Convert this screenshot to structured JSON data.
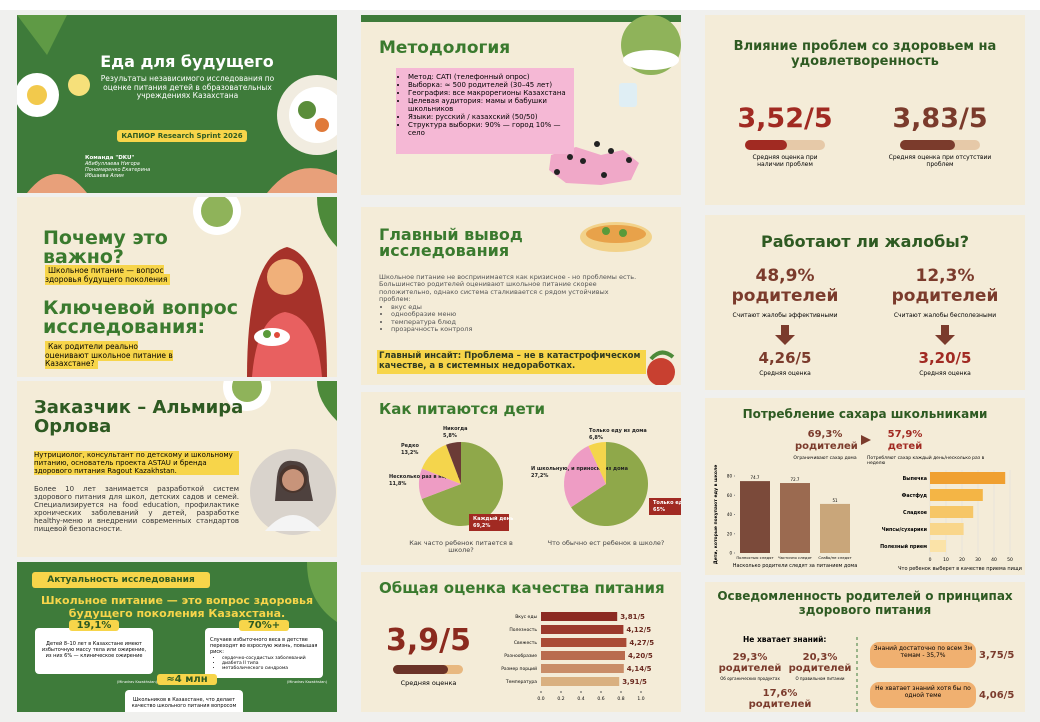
{
  "title_slide": {
    "title": "Еда для будущего",
    "subtitle": "Результаты независимого исследования по оценке питания детей в образовательных учреждениях Казахстана",
    "badge": "КАПИОР Research Sprint 2026",
    "team": "Команда \"DKU\"",
    "members": [
      "Абибуллаева Нигора",
      "Пономаренко Екатерина",
      "Ибшаева Алим"
    ]
  },
  "importance": {
    "title": "Почему это важно?",
    "text": "Школьное питание — вопрос здоровья будущего поколения",
    "question_title": "Ключевой вопрос исследования:",
    "question": "Как родители реально оценивают школьное питание в Казахстане?"
  },
  "client": {
    "title": "Заказчик – Альмира Орлова",
    "bio": "Нутрициолог, консультант по детскому и школьному питанию, основатель проекта ASTAU и бренда здорового питания Ragout Kazakhstan.",
    "experience": "Более 10 лет занимается разработкой систем здорового питания для школ, детских садов и семей. Специализируется на food education, профилактике хронических заболеваний у детей, разработке healthy-меню и внедрении современных стандартов пищевой безопасности."
  },
  "relevance": {
    "badge": "Актуальность исследования",
    "title": "Школьное питание — это вопрос здоровья будущего поколения Казахстана.",
    "stats": [
      {
        "value": "19,1%",
        "text": "Детей 8–10 лет в Казахстане имеют избыточную массу тела или ожирение, из них 6% — клиническое ожирение",
        "source": "(Minzdrav Kazakhstan)"
      },
      {
        "value": "70%+",
        "text": "Случаев избыточного веса в детстве переходят во взрослую жизнь, повышая риск:",
        "list": [
          "сердечно-сосудистых заболеваний",
          "диабета II типа",
          "метаболического синдрома"
        ],
        "source": "(Minzdrav Kazakhstan)"
      },
      {
        "value": "≈4 млн",
        "text": "Школьников в Казахстане, что делает качество школьного питания вопросом"
      }
    ]
  },
  "methodology": {
    "title": "Методология",
    "items": [
      "Метод: CATI (телефонный опрос)",
      "Выборка: ≈ 500 родителей (30–45 лет)",
      "География: все макрорегионы Казахстана",
      "Целевая аудитория: мамы и бабушки школьников",
      "Языки: русский / казахский (50/50)",
      "Структура выборки: 90% — город 10% — село"
    ]
  },
  "main_finding": {
    "title": "Главный вывод исследования",
    "text": "Школьное питание не воспринимается как кризисное - но проблемы есть. Большинство родителей оценивают школьное питание скорее положительно, однако система сталкивается с рядом устойчивых проблем:",
    "items": [
      "вкус еды",
      "однообразие меню",
      "температура блюд",
      "прозрачность контроля"
    ],
    "insight": "Главный инсайт: Проблема – не в катастрофическом качестве, а в системных недоработках."
  },
  "eating": {
    "title": "Как питаются дети",
    "charts": [
      {
        "type": "pie",
        "question": "Как часто ребенок питается в школе?",
        "slices": [
          {
            "label": "Каждый день",
            "value": 69.2,
            "value_label": "69,2%",
            "color": "#8fa84a"
          },
          {
            "label": "Несколько раз в неделю",
            "value": 11.8,
            "value_label": "11,8%",
            "color": "#ee9cc4"
          },
          {
            "label": "Редко",
            "value": 13.2,
            "value_label": "13,2%",
            "color": "#f4d54c"
          },
          {
            "label": "Никогда",
            "value": 5.8,
            "value_label": "5,8%",
            "color": "#6b3b36"
          }
        ]
      },
      {
        "type": "pie",
        "question": "Что обычно ест ребенок в школе?",
        "slices": [
          {
            "label": "Только еду из дома",
            "value": 65,
            "value_label": "65%",
            "color": "#8fa84a"
          },
          {
            "label": "И школьную, и приносит из дома",
            "value": 27.2,
            "value_label": "27,2%",
            "color": "#ee9cc4"
          },
          {
            "label": "Только еду из дома",
            "value": 6.8,
            "value_label": "6,8%",
            "color": "#f4d54c"
          }
        ]
      }
    ]
  },
  "quality": {
    "title": "Общая оценка качества питания",
    "overall": "3,9/5",
    "overall_caption": "Средняя оценка",
    "chart_data": {
      "type": "hbar",
      "scale_max": 5,
      "categories": [
        "Вкус еды",
        "Полезность",
        "Свежесть",
        "Разнообразие",
        "Размер порций",
        "Температура"
      ],
      "values": [
        3.81,
        4.12,
        4.27,
        4.2,
        4.14,
        3.91
      ],
      "value_labels": [
        "3,81/5",
        "4,12/5",
        "4,27/5",
        "4,20/5",
        "4,14/5",
        "3,91/5"
      ],
      "colors": [
        "#8c2a22",
        "#9c3a2c",
        "#aa4c36",
        "#b96c4e",
        "#c98d68",
        "#d9b080"
      ],
      "xlim": [
        0,
        1
      ],
      "xticks": [
        {
          "value": 0,
          "label": "0.0"
        },
        0.2,
        0.4,
        0.6,
        0.8,
        {
          "value": 1,
          "label": "1.0"
        }
      ]
    }
  },
  "health": {
    "title": "Влияние проблем со здоровьем на удовлетворенность",
    "items": [
      {
        "score": "3,52/5",
        "caption": "Средняя оценка при наличии проблем"
      },
      {
        "score": "3,83/5",
        "caption": "Средняя оценка при отсутствии проблем"
      }
    ]
  },
  "complaints": {
    "title": "Работают ли жалобы?",
    "items": [
      {
        "share": "48,9%",
        "who": "родителей",
        "caption": "Считают жалобы эффективными",
        "score": "4,26/5",
        "score_caption": "Средняя оценка"
      },
      {
        "share": "12,3%",
        "who": "родителей",
        "caption": "Считают жалобы бесполезными",
        "score": "3,20/5",
        "score_caption": "Средняя оценка"
      }
    ]
  },
  "sugar": {
    "title": "Потребление сахара школьниками",
    "stats": [
      {
        "value": "69,3%",
        "who": "родителей",
        "caption": "Ограничивают сахар дома"
      },
      {
        "value": "57,9%",
        "who": "детей",
        "caption": "Потребляют сахар каждый день/несколько раз в неделю"
      }
    ],
    "bar_chart": {
      "type": "bar",
      "ylabel": "Дети, которые покупают еду в школе",
      "xlabel": "Насколько родители следят за питанием дома",
      "categories": [
        "Полностью следят",
        "Частично следят",
        "Слабо/не следят"
      ],
      "values": [
        74.7,
        72.7,
        51
      ],
      "colors": [
        "#7b4a3a",
        "#9b6a50",
        "#c9a67a"
      ],
      "ylim": [
        0,
        80
      ],
      "yticks": [
        0,
        20,
        40,
        60,
        80
      ]
    },
    "hbar_chart": {
      "type": "hbar",
      "xlabel": "Что ребенок выберет в качестве приема пищи",
      "categories": [
        "Выпечка",
        "Фастфуд",
        "Сладкое",
        "Чипсы/сухарики",
        "Полезный прием"
      ],
      "values": [
        47,
        33,
        27,
        21,
        10
      ],
      "colors": [
        "#f0a030",
        "#f4b545",
        "#f6c666",
        "#f9d68a",
        "#fbe3a8"
      ],
      "xlim": [
        0,
        50
      ],
      "xticks": [
        0,
        10,
        20,
        30,
        40,
        50
      ]
    }
  },
  "awareness": {
    "title": "Осведомленность родителей о принципах здорового питания",
    "lack_title": "Не хватает знаний:",
    "stats": [
      {
        "value": "29,3%",
        "who": "родителей",
        "caption": "Об органических продуктах"
      },
      {
        "value": "20,3%",
        "who": "родителей",
        "caption": "О правильном питании"
      },
      {
        "value": "17,6%",
        "who": "родителей"
      }
    ],
    "boxes": [
      {
        "text": "Знаний достаточно по всем 3м темам - 35,7%",
        "score": "3,75/5"
      },
      {
        "text": "Не хватает знаний хотя бы по одной теме",
        "score": "4,06/5"
      }
    ]
  }
}
